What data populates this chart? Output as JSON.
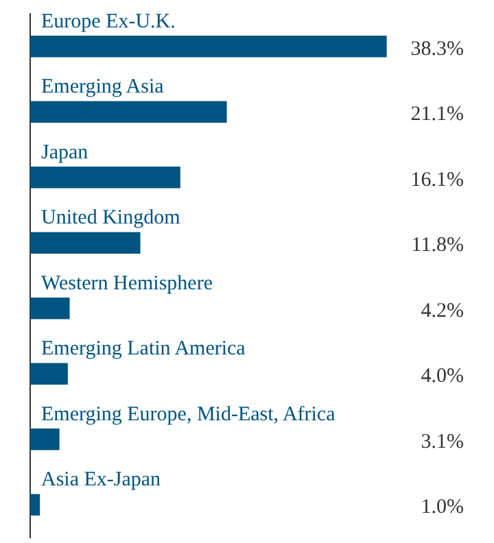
{
  "chart_data": {
    "type": "bar",
    "orientation": "horizontal",
    "categories": [
      "Europe Ex-U.K.",
      "Emerging Asia",
      "Japan",
      "United Kingdom",
      "Western Hemisphere",
      "Emerging Latin America",
      "Emerging Europe, Mid-East, Africa",
      "Asia Ex-Japan"
    ],
    "values": [
      38.3,
      21.1,
      16.1,
      11.8,
      4.2,
      4.0,
      3.1,
      1.0
    ],
    "value_labels": [
      "38.3%",
      "21.1%",
      "16.1%",
      "11.8%",
      "4.2%",
      "4.0%",
      "3.1%",
      "1.0%"
    ],
    "color": "#005480",
    "legend": false
  }
}
